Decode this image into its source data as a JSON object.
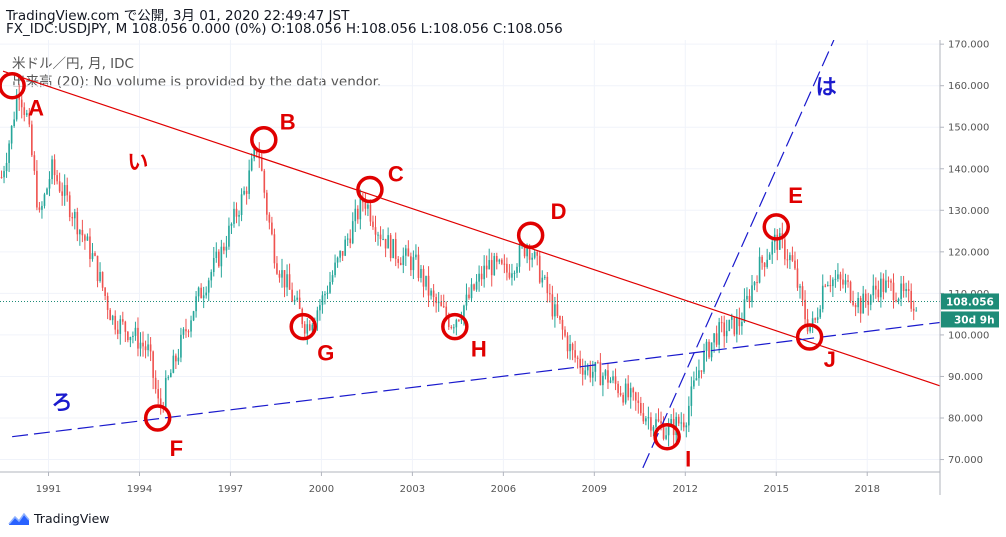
{
  "header": {
    "line1": "TradingView.com で公開, 3月 01, 2020 22:49:47 JST",
    "line2": "FX_IDC:USDJPY, M 108.056 0.000 (0%) O:108.056 H:108.056 L:108.056 C:108.056"
  },
  "legend": {
    "series": "米ドル／円, 月, IDC",
    "volume": "出来高 (20): No volume is provided by the data vendor."
  },
  "footer": {
    "brand": "TradingView"
  },
  "colors": {
    "up": "#26a69a",
    "down": "#ef5350",
    "red_line": "#e00000",
    "blue_line": "#1a1acd",
    "price_tag": "#1e8c78"
  },
  "chart_data": {
    "type": "candlestick",
    "x_ticks": [
      "1991",
      "1994",
      "1997",
      "2000",
      "2003",
      "2006",
      "2009",
      "2012",
      "2015",
      "2018"
    ],
    "y_ticks": [
      "170.000",
      "160.000",
      "150.000",
      "140.000",
      "130.000",
      "120.000",
      "110.000",
      "100.000",
      "90.000",
      "80.000",
      "70.000"
    ],
    "ylim": [
      67,
      171
    ],
    "xlim": [
      1989.9,
      2020.9
    ],
    "last_price": "108.056",
    "countdown": "30d 9h",
    "path": [
      [
        1989.95,
        138
      ],
      [
        1990.3,
        150
      ],
      [
        1990.5,
        160
      ],
      [
        1990.8,
        152
      ],
      [
        1991.2,
        128
      ],
      [
        1991.6,
        140
      ],
      [
        1992.2,
        131
      ],
      [
        1993.0,
        118
      ],
      [
        1993.6,
        104
      ],
      [
        1994.3,
        100
      ],
      [
        1994.8,
        96
      ],
      [
        1995.15,
        82
      ],
      [
        1995.5,
        90
      ],
      [
        1996.3,
        107
      ],
      [
        1997.2,
        120
      ],
      [
        1998.0,
        135
      ],
      [
        1998.4,
        146
      ],
      [
        1998.7,
        130
      ],
      [
        1999.0,
        118
      ],
      [
        1999.6,
        108
      ],
      [
        2000.0,
        102
      ],
      [
        2000.5,
        108
      ],
      [
        2001.3,
        122
      ],
      [
        2001.9,
        133
      ],
      [
        2002.4,
        125
      ],
      [
        2002.9,
        120
      ],
      [
        2003.6,
        117
      ],
      [
        2004.2,
        108
      ],
      [
        2004.8,
        103
      ],
      [
        2005.3,
        108
      ],
      [
        2006.0,
        117
      ],
      [
        2006.6,
        115
      ],
      [
        2007.3,
        122
      ],
      [
        2007.7,
        115
      ],
      [
        2008.2,
        105
      ],
      [
        2008.8,
        95
      ],
      [
        2009.2,
        92
      ],
      [
        2009.9,
        90
      ],
      [
        2010.5,
        86
      ],
      [
        2011.3,
        80
      ],
      [
        2011.9,
        77
      ],
      [
        2012.5,
        80
      ],
      [
        2013.0,
        93
      ],
      [
        2013.5,
        100
      ],
      [
        2014.3,
        103
      ],
      [
        2014.9,
        116
      ],
      [
        2015.5,
        123
      ],
      [
        2016.0,
        118
      ],
      [
        2016.5,
        103
      ],
      [
        2016.75,
        102
      ],
      [
        2017.1,
        114
      ],
      [
        2017.8,
        112
      ],
      [
        2018.3,
        107
      ],
      [
        2018.9,
        112
      ],
      [
        2019.4,
        111
      ],
      [
        2019.9,
        108
      ],
      [
        2020.15,
        108
      ]
    ],
    "points": [
      {
        "label": "A",
        "x": 1990.3,
        "y": 160
      },
      {
        "label": "B",
        "x": 1998.6,
        "y": 147
      },
      {
        "label": "C",
        "x": 2002.1,
        "y": 135
      },
      {
        "label": "D",
        "x": 2007.4,
        "y": 124
      },
      {
        "label": "E",
        "x": 2015.5,
        "y": 126
      },
      {
        "label": "F",
        "x": 1995.1,
        "y": 80
      },
      {
        "label": "G",
        "x": 1999.9,
        "y": 102
      },
      {
        "label": "H",
        "x": 2004.9,
        "y": 102
      },
      {
        "label": "I",
        "x": 2011.9,
        "y": 75.5
      },
      {
        "label": "J",
        "x": 2016.6,
        "y": 99.5
      }
    ],
    "trend_lines": [
      {
        "label": "い",
        "style": "solid",
        "color": "red",
        "from": [
          1990.0,
          163.5
        ],
        "to": [
          2021.0,
          87.5
        ]
      },
      {
        "label": "ろ",
        "style": "dashed",
        "color": "blue",
        "from": [
          1990.3,
          75.5
        ],
        "to": [
          2020.9,
          103
        ]
      },
      {
        "label": "は",
        "style": "dashed",
        "color": "blue",
        "from": [
          2011.1,
          68
        ],
        "to": [
          2017.4,
          171
        ]
      }
    ]
  }
}
